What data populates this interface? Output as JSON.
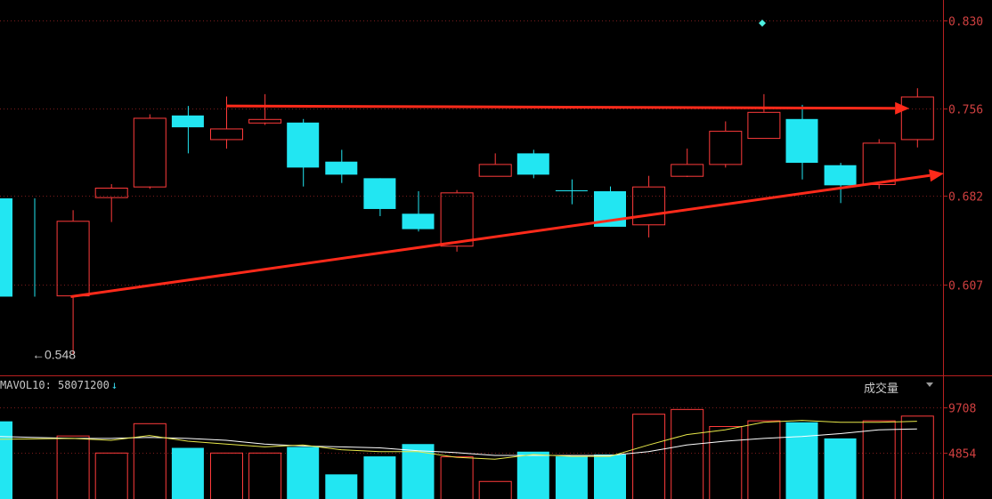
{
  "header": {
    "mavol_label": "MAVOL10:",
    "mavol_value": "58071200",
    "mavol_arrow": "↓",
    "volume_title": "成交量"
  },
  "colors": {
    "up": "#ff3b3b",
    "down": "#22e6f2",
    "axis": "#b82020",
    "ma_fast": "#e8e84a",
    "ma_slow": "#ffffff",
    "arrow": "#ff2a1a"
  },
  "chart_data": [
    {
      "type": "candlestick",
      "y_tick_labels": [
        "0.830",
        "0.756",
        "0.682",
        "0.607"
      ],
      "y_ticks": [
        0.83,
        0.756,
        0.682,
        0.607
      ],
      "ylim": [
        0.532,
        0.84
      ],
      "grid": true,
      "candles": [
        {
          "open": 0.68,
          "close": 0.597,
          "high": 0.68,
          "low": 0.597
        },
        {
          "open": 0.598,
          "close": 0.661,
          "high": 0.67,
          "low": 0.548
        },
        {
          "open": 0.681,
          "close": 0.689,
          "high": 0.692,
          "low": 0.66
        },
        {
          "open": 0.69,
          "close": 0.748,
          "high": 0.751,
          "low": 0.688
        },
        {
          "open": 0.75,
          "close": 0.74,
          "high": 0.758,
          "low": 0.718
        },
        {
          "open": 0.73,
          "close": 0.739,
          "high": 0.766,
          "low": 0.722
        },
        {
          "open": 0.744,
          "close": 0.747,
          "high": 0.768,
          "low": 0.742
        },
        {
          "open": 0.744,
          "close": 0.706,
          "high": 0.747,
          "low": 0.69
        },
        {
          "open": 0.711,
          "close": 0.7,
          "high": 0.721,
          "low": 0.693
        },
        {
          "open": 0.697,
          "close": 0.671,
          "high": 0.697,
          "low": 0.665
        },
        {
          "open": 0.667,
          "close": 0.654,
          "high": 0.686,
          "low": 0.652
        },
        {
          "open": 0.64,
          "close": 0.685,
          "high": 0.687,
          "low": 0.635
        },
        {
          "open": 0.699,
          "close": 0.709,
          "high": 0.718,
          "low": 0.699
        },
        {
          "open": 0.718,
          "close": 0.7,
          "high": 0.721,
          "low": 0.697
        },
        {
          "open": 0.687,
          "close": 0.687,
          "high": 0.696,
          "low": 0.675
        },
        {
          "open": 0.686,
          "close": 0.656,
          "high": 0.69,
          "low": 0.656
        },
        {
          "open": 0.658,
          "close": 0.69,
          "high": 0.699,
          "low": 0.647
        },
        {
          "open": 0.699,
          "close": 0.709,
          "high": 0.722,
          "low": 0.698
        },
        {
          "open": 0.709,
          "close": 0.737,
          "high": 0.745,
          "low": 0.706
        },
        {
          "open": 0.731,
          "close": 0.753,
          "high": 0.768,
          "low": 0.731
        },
        {
          "open": 0.747,
          "close": 0.71,
          "high": 0.759,
          "low": 0.696
        },
        {
          "open": 0.708,
          "close": 0.691,
          "high": 0.71,
          "low": 0.676
        },
        {
          "open": 0.692,
          "close": 0.727,
          "high": 0.73,
          "low": 0.688
        },
        {
          "open": 0.73,
          "close": 0.766,
          "high": 0.773,
          "low": 0.723
        }
      ],
      "annotations": {
        "low_label": "←0.548",
        "marker_price": 0.828,
        "resistance_line": {
          "from_index": 5,
          "to_index": 22.8,
          "price_from": 0.758,
          "price_to": 0.756
        },
        "support_line": {
          "from_index": 0.95,
          "to_index": 23.7,
          "price_from": 0.597,
          "price_to": 0.701
        }
      }
    },
    {
      "type": "bar",
      "y_tick_labels": [
        "9708",
        "4854"
      ],
      "y_ticks": [
        9708,
        4854
      ],
      "ylim": [
        0,
        10800
      ],
      "volumes": [
        8200,
        6700,
        4900,
        8000,
        5400,
        4900,
        4900,
        5500,
        2600,
        4500,
        5800,
        4500,
        1900,
        5000,
        4500,
        4700,
        9000,
        9500,
        7700,
        8300,
        8100,
        6400,
        8300,
        8800
      ],
      "ma_fast": [
        6300,
        6400,
        6200,
        6700,
        6100,
        5800,
        5500,
        5700,
        5200,
        5000,
        5000,
        4400,
        4200,
        4700,
        4500,
        4500,
        5700,
        6800,
        7300,
        8100,
        8300,
        8100,
        8100,
        8200
      ],
      "ma_slow": [
        6600,
        6400,
        6400,
        6500,
        6400,
        6200,
        5800,
        5600,
        5500,
        5400,
        5100,
        4900,
        4600,
        4600,
        4600,
        4600,
        5000,
        5700,
        6100,
        6400,
        6600,
        6900,
        7300,
        7400
      ]
    }
  ]
}
